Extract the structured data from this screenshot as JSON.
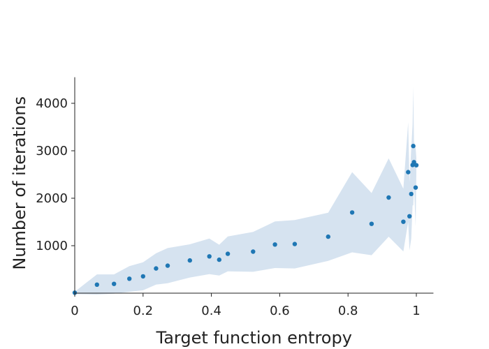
{
  "chart_data": {
    "type": "scatter",
    "title": "",
    "xlabel": "Target function entropy",
    "ylabel": "Number of iterations",
    "xlim": [
      0,
      1.05
    ],
    "ylim": [
      0,
      4550
    ],
    "x_ticks": [
      0,
      0.2,
      0.4,
      0.6,
      0.8,
      1
    ],
    "x_tick_labels": [
      "0",
      "0.2",
      "0.4",
      "0.6",
      "0.8",
      "1"
    ],
    "y_ticks": [
      1000,
      2000,
      3000,
      4000
    ],
    "y_tick_labels": [
      "1000",
      "2000",
      "3000",
      "4000"
    ],
    "grid": false,
    "colors": {
      "points": "#1f77b4",
      "band": "#d6e3f0",
      "axes": "#222222"
    },
    "series": [
      {
        "points": [
          {
            "x": 0.0,
            "y": 10
          },
          {
            "x": 0.065,
            "y": 180
          },
          {
            "x": 0.115,
            "y": 195
          },
          {
            "x": 0.16,
            "y": 305
          },
          {
            "x": 0.2,
            "y": 355
          },
          {
            "x": 0.238,
            "y": 520
          },
          {
            "x": 0.272,
            "y": 580
          },
          {
            "x": 0.337,
            "y": 690
          },
          {
            "x": 0.394,
            "y": 775
          },
          {
            "x": 0.423,
            "y": 705
          },
          {
            "x": 0.448,
            "y": 830
          },
          {
            "x": 0.522,
            "y": 875
          },
          {
            "x": 0.586,
            "y": 1025
          },
          {
            "x": 0.644,
            "y": 1035
          },
          {
            "x": 0.742,
            "y": 1190
          },
          {
            "x": 0.812,
            "y": 1700
          },
          {
            "x": 0.869,
            "y": 1460
          },
          {
            "x": 0.919,
            "y": 2015
          },
          {
            "x": 0.962,
            "y": 1505
          },
          {
            "x": 0.976,
            "y": 2550
          },
          {
            "x": 0.98,
            "y": 1620
          },
          {
            "x": 0.985,
            "y": 2090
          },
          {
            "x": 0.989,
            "y": 2700
          },
          {
            "x": 0.991,
            "y": 3100
          },
          {
            "x": 0.993,
            "y": 2760
          },
          {
            "x": 0.998,
            "y": 2225
          },
          {
            "x": 1.0,
            "y": 2695
          }
        ]
      }
    ],
    "band": {
      "upper": [
        [
          0.0,
          30
        ],
        [
          0.065,
          395
        ],
        [
          0.115,
          395
        ],
        [
          0.16,
          570
        ],
        [
          0.2,
          650
        ],
        [
          0.238,
          840
        ],
        [
          0.272,
          950
        ],
        [
          0.337,
          1030
        ],
        [
          0.394,
          1150
        ],
        [
          0.423,
          1020
        ],
        [
          0.448,
          1195
        ],
        [
          0.522,
          1290
        ],
        [
          0.586,
          1510
        ],
        [
          0.644,
          1540
        ],
        [
          0.742,
          1695
        ],
        [
          0.812,
          2550
        ],
        [
          0.869,
          2110
        ],
        [
          0.919,
          2840
        ],
        [
          0.962,
          2200
        ],
        [
          0.976,
          3600
        ],
        [
          0.98,
          2340
        ],
        [
          0.985,
          3050
        ],
        [
          0.989,
          3550
        ],
        [
          0.991,
          4350
        ],
        [
          0.993,
          3200
        ],
        [
          0.998,
          3050
        ],
        [
          1.0,
          2850
        ]
      ],
      "lower": [
        [
          0.0,
          -20
        ],
        [
          0.065,
          -30
        ],
        [
          0.115,
          -10
        ],
        [
          0.16,
          30
        ],
        [
          0.2,
          60
        ],
        [
          0.238,
          180
        ],
        [
          0.272,
          210
        ],
        [
          0.337,
          330
        ],
        [
          0.394,
          400
        ],
        [
          0.423,
          370
        ],
        [
          0.448,
          460
        ],
        [
          0.522,
          450
        ],
        [
          0.586,
          530
        ],
        [
          0.644,
          520
        ],
        [
          0.742,
          680
        ],
        [
          0.812,
          860
        ],
        [
          0.869,
          800
        ],
        [
          0.919,
          1190
        ],
        [
          0.962,
          880
        ],
        [
          0.976,
          1500
        ],
        [
          0.98,
          900
        ],
        [
          0.985,
          1150
        ],
        [
          0.989,
          1850
        ],
        [
          0.991,
          1850
        ],
        [
          0.993,
          2300
        ],
        [
          0.998,
          1400
        ],
        [
          1.0,
          2550
        ]
      ]
    }
  }
}
